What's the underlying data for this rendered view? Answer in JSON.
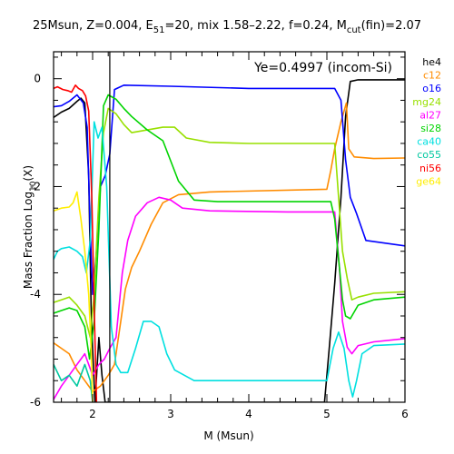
{
  "chart_data": {
    "type": "line",
    "title_parts": {
      "base": "25Msun, Z=0.004, E",
      "e_sub": "51",
      "mid": "=20, mix 1.58–2.22, f=0.24, M",
      "m_sub": "cut",
      "tail": "(fin)=2.07"
    },
    "annotation": "Ye=0.4997 (incom-Si)",
    "xlabel": "M (Msun)",
    "ylabel_parts": {
      "base": "Mass Fraction Log",
      "sub": "10",
      "tail": "(X)"
    },
    "xlim": [
      1.5,
      6.0
    ],
    "ylim": [
      -6.0,
      0.5
    ],
    "x_ticks": [
      2,
      3,
      4,
      5,
      6
    ],
    "y_ticks": [
      0,
      -2,
      -4,
      -6
    ],
    "mcut_line_x": 2.22,
    "legend_placement": "right-outside",
    "series": [
      {
        "name": "he4",
        "color": "#000000",
        "points": [
          [
            1.5,
            -0.72
          ],
          [
            1.6,
            -0.62
          ],
          [
            1.7,
            -0.55
          ],
          [
            1.8,
            -0.42
          ],
          [
            1.85,
            -0.36
          ],
          [
            1.9,
            -0.45
          ],
          [
            1.95,
            -1.8
          ],
          [
            1.98,
            -4.2
          ],
          [
            2.0,
            -5.0
          ],
          [
            2.03,
            -6.0
          ],
          [
            2.08,
            -4.8
          ],
          [
            2.12,
            -5.5
          ],
          [
            2.16,
            -6.0
          ],
          [
            4.97,
            -6.0
          ],
          [
            5.03,
            -5.0
          ],
          [
            5.1,
            -3.8
          ],
          [
            5.18,
            -2.2
          ],
          [
            5.24,
            -0.7
          ],
          [
            5.3,
            -0.05
          ],
          [
            5.4,
            -0.02
          ],
          [
            6.0,
            -0.02
          ]
        ]
      },
      {
        "name": "c12",
        "color": "#ff8c00",
        "points": [
          [
            1.5,
            -4.9
          ],
          [
            1.6,
            -5.0
          ],
          [
            1.7,
            -5.1
          ],
          [
            1.8,
            -5.4
          ],
          [
            1.9,
            -5.6
          ],
          [
            2.0,
            -5.8
          ],
          [
            2.1,
            -5.7
          ],
          [
            2.2,
            -5.5
          ],
          [
            2.28,
            -5.3
          ],
          [
            2.36,
            -4.5
          ],
          [
            2.42,
            -3.9
          ],
          [
            2.5,
            -3.5
          ],
          [
            2.6,
            -3.2
          ],
          [
            2.75,
            -2.7
          ],
          [
            2.9,
            -2.3
          ],
          [
            3.1,
            -2.15
          ],
          [
            3.5,
            -2.1
          ],
          [
            5.0,
            -2.05
          ],
          [
            5.05,
            -1.7
          ],
          [
            5.1,
            -1.3
          ],
          [
            5.18,
            -0.8
          ],
          [
            5.25,
            -0.45
          ],
          [
            5.28,
            -1.3
          ],
          [
            5.35,
            -1.45
          ],
          [
            5.6,
            -1.48
          ],
          [
            6.0,
            -1.47
          ]
        ]
      },
      {
        "name": "o16",
        "color": "#0000ff",
        "points": [
          [
            1.5,
            -0.52
          ],
          [
            1.6,
            -0.5
          ],
          [
            1.7,
            -0.42
          ],
          [
            1.8,
            -0.3
          ],
          [
            1.88,
            -0.45
          ],
          [
            1.93,
            -0.9
          ],
          [
            1.97,
            -2.8
          ],
          [
            2.0,
            -4.0
          ],
          [
            2.05,
            -3.2
          ],
          [
            2.1,
            -2.0
          ],
          [
            2.16,
            -1.8
          ],
          [
            2.22,
            -1.4
          ],
          [
            2.28,
            -0.2
          ],
          [
            2.4,
            -0.12
          ],
          [
            3.0,
            -0.14
          ],
          [
            4.0,
            -0.18
          ],
          [
            5.1,
            -0.18
          ],
          [
            5.18,
            -0.4
          ],
          [
            5.24,
            -1.5
          ],
          [
            5.3,
            -2.2
          ],
          [
            5.38,
            -2.5
          ],
          [
            5.5,
            -3.0
          ],
          [
            6.0,
            -3.1
          ]
        ]
      },
      {
        "name": "mg24",
        "color": "#98e000",
        "points": [
          [
            1.5,
            -4.15
          ],
          [
            1.6,
            -4.1
          ],
          [
            1.7,
            -4.05
          ],
          [
            1.8,
            -4.2
          ],
          [
            1.9,
            -4.4
          ],
          [
            1.97,
            -4.8
          ],
          [
            2.02,
            -4.0
          ],
          [
            2.08,
            -2.2
          ],
          [
            2.14,
            -1.0
          ],
          [
            2.2,
            -0.55
          ],
          [
            2.3,
            -0.65
          ],
          [
            2.4,
            -0.85
          ],
          [
            2.5,
            -1.0
          ],
          [
            2.7,
            -0.95
          ],
          [
            2.9,
            -0.9
          ],
          [
            3.05,
            -0.9
          ],
          [
            3.2,
            -1.1
          ],
          [
            3.5,
            -1.18
          ],
          [
            4.0,
            -1.2
          ],
          [
            5.1,
            -1.2
          ],
          [
            5.15,
            -2.2
          ],
          [
            5.2,
            -3.2
          ],
          [
            5.26,
            -3.7
          ],
          [
            5.32,
            -4.1
          ],
          [
            5.4,
            -4.05
          ],
          [
            5.6,
            -3.98
          ],
          [
            6.0,
            -3.95
          ]
        ]
      },
      {
        "name": "al27",
        "color": "#ff00ff",
        "points": [
          [
            1.5,
            -5.95
          ],
          [
            1.6,
            -5.7
          ],
          [
            1.7,
            -5.5
          ],
          [
            1.8,
            -5.3
          ],
          [
            1.9,
            -5.1
          ],
          [
            2.0,
            -5.5
          ],
          [
            2.08,
            -5.3
          ],
          [
            2.15,
            -5.2
          ],
          [
            2.22,
            -5.0
          ],
          [
            2.3,
            -4.8
          ],
          [
            2.38,
            -3.6
          ],
          [
            2.45,
            -3.0
          ],
          [
            2.55,
            -2.55
          ],
          [
            2.7,
            -2.3
          ],
          [
            2.85,
            -2.2
          ],
          [
            3.0,
            -2.25
          ],
          [
            3.15,
            -2.4
          ],
          [
            3.5,
            -2.45
          ],
          [
            4.5,
            -2.47
          ],
          [
            5.1,
            -2.47
          ],
          [
            5.16,
            -3.5
          ],
          [
            5.2,
            -4.5
          ],
          [
            5.26,
            -4.98
          ],
          [
            5.32,
            -5.1
          ],
          [
            5.4,
            -4.95
          ],
          [
            5.6,
            -4.88
          ],
          [
            6.0,
            -4.82
          ]
        ]
      },
      {
        "name": "si28",
        "color": "#00d400",
        "points": [
          [
            1.5,
            -4.35
          ],
          [
            1.6,
            -4.3
          ],
          [
            1.7,
            -4.25
          ],
          [
            1.8,
            -4.3
          ],
          [
            1.9,
            -4.6
          ],
          [
            1.96,
            -5.2
          ],
          [
            2.02,
            -4.5
          ],
          [
            2.08,
            -2.8
          ],
          [
            2.14,
            -0.5
          ],
          [
            2.2,
            -0.3
          ],
          [
            2.3,
            -0.38
          ],
          [
            2.4,
            -0.55
          ],
          [
            2.5,
            -0.7
          ],
          [
            2.7,
            -0.95
          ],
          [
            2.9,
            -1.15
          ],
          [
            3.1,
            -1.9
          ],
          [
            3.3,
            -2.25
          ],
          [
            3.6,
            -2.28
          ],
          [
            5.05,
            -2.28
          ],
          [
            5.1,
            -2.6
          ],
          [
            5.16,
            -3.5
          ],
          [
            5.2,
            -4.1
          ],
          [
            5.24,
            -4.4
          ],
          [
            5.3,
            -4.45
          ],
          [
            5.4,
            -4.2
          ],
          [
            5.6,
            -4.1
          ],
          [
            6.0,
            -4.05
          ]
        ]
      },
      {
        "name": "ca40",
        "color": "#00e0e0",
        "points": [
          [
            1.5,
            -3.35
          ],
          [
            1.55,
            -3.2
          ],
          [
            1.6,
            -3.15
          ],
          [
            1.7,
            -3.12
          ],
          [
            1.8,
            -3.2
          ],
          [
            1.87,
            -3.3
          ],
          [
            1.92,
            -3.6
          ],
          [
            1.97,
            -3.0
          ],
          [
            2.02,
            -0.8
          ],
          [
            2.07,
            -1.1
          ],
          [
            2.12,
            -0.9
          ],
          [
            2.18,
            -2.0
          ],
          [
            2.24,
            -4.6
          ],
          [
            2.3,
            -5.3
          ],
          [
            2.36,
            -5.45
          ],
          [
            2.45,
            -5.45
          ],
          [
            2.55,
            -5.0
          ],
          [
            2.65,
            -4.5
          ],
          [
            2.75,
            -4.5
          ],
          [
            2.85,
            -4.6
          ],
          [
            2.95,
            -5.1
          ],
          [
            3.05,
            -5.4
          ],
          [
            3.3,
            -5.6
          ],
          [
            5.0,
            -5.6
          ],
          [
            5.08,
            -5.0
          ],
          [
            5.15,
            -4.7
          ],
          [
            5.22,
            -5.0
          ],
          [
            5.28,
            -5.6
          ],
          [
            5.33,
            -5.9
          ],
          [
            5.38,
            -5.6
          ],
          [
            5.45,
            -5.1
          ],
          [
            5.6,
            -4.95
          ],
          [
            6.0,
            -4.92
          ]
        ]
      },
      {
        "name": "co55",
        "color": "#00c8a0",
        "points": [
          [
            1.5,
            -5.3
          ],
          [
            1.6,
            -5.6
          ],
          [
            1.7,
            -5.5
          ],
          [
            1.8,
            -5.7
          ],
          [
            1.9,
            -5.3
          ],
          [
            1.97,
            -5.6
          ],
          [
            2.0,
            -6.0
          ]
        ]
      },
      {
        "name": "ni56",
        "color": "#ff0000",
        "points": [
          [
            1.5,
            -0.18
          ],
          [
            1.55,
            -0.15
          ],
          [
            1.62,
            -0.2
          ],
          [
            1.68,
            -0.22
          ],
          [
            1.73,
            -0.25
          ],
          [
            1.78,
            -0.12
          ],
          [
            1.82,
            -0.18
          ],
          [
            1.87,
            -0.22
          ],
          [
            1.91,
            -0.32
          ],
          [
            1.95,
            -0.6
          ],
          [
            1.99,
            -2.2
          ],
          [
            2.02,
            -4.2
          ],
          [
            2.05,
            -6.0
          ]
        ]
      },
      {
        "name": "ge64",
        "color": "#ffee00",
        "points": [
          [
            1.5,
            -2.45
          ],
          [
            1.6,
            -2.4
          ],
          [
            1.7,
            -2.38
          ],
          [
            1.75,
            -2.3
          ],
          [
            1.8,
            -2.1
          ],
          [
            1.85,
            -2.6
          ],
          [
            1.9,
            -3.2
          ],
          [
            1.95,
            -4.0
          ],
          [
            1.98,
            -5.0
          ],
          [
            2.0,
            -6.0
          ]
        ]
      }
    ]
  }
}
